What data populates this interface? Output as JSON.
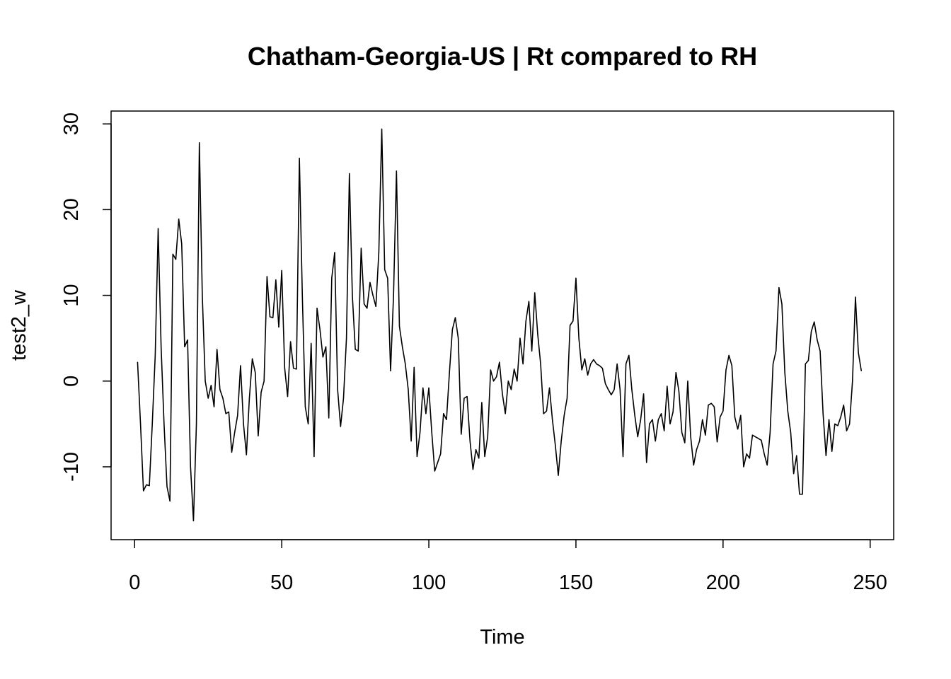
{
  "chart_data": {
    "type": "line",
    "title": "Chatham-Georgia-US | Rt compared to RH",
    "xlabel": "Time",
    "ylabel": "test2_w",
    "xlim": [
      -8,
      258
    ],
    "ylim": [
      -18.5,
      31.5
    ],
    "xticks": [
      0,
      50,
      100,
      150,
      200,
      250
    ],
    "yticks": [
      -10,
      0,
      10,
      20,
      30
    ],
    "grid": false,
    "legend": "none",
    "line_color": "#000000",
    "series": [
      {
        "x_start": 1,
        "values": [
          2.2,
          -5.0,
          -12.8,
          -12.1,
          -12.2,
          -5.0,
          3.0,
          17.8,
          4.0,
          -5.0,
          -12.3,
          -14.0,
          14.8,
          14.2,
          18.9,
          16.0,
          4.0,
          4.8,
          -10.0,
          -16.3,
          -5.0,
          27.8,
          10.0,
          0.0,
          -2.0,
          -0.5,
          -3.0,
          3.7,
          -1.0,
          -2.0,
          -3.8,
          -3.6,
          -8.3,
          -6.0,
          -4.0,
          1.8,
          -5.0,
          -8.6,
          -2.0,
          2.6,
          1.0,
          -6.4,
          -1.3,
          0.0,
          12.2,
          7.5,
          7.4,
          11.8,
          6.3,
          12.9,
          1.5,
          -1.8,
          4.6,
          1.5,
          1.4,
          26.0,
          10.0,
          -3.0,
          -5.0,
          4.4,
          -8.8,
          8.5,
          6.0,
          2.8,
          4.0,
          -4.3,
          12.0,
          15.0,
          -1.0,
          -5.3,
          -2.0,
          5.0,
          24.2,
          10.0,
          3.7,
          3.5,
          15.5,
          9.0,
          8.5,
          11.5,
          10.0,
          8.7,
          15.0,
          29.4,
          13.0,
          12.0,
          1.2,
          10.0,
          24.5,
          6.4,
          4.0,
          2.0,
          -1.0,
          -7.0,
          1.6,
          -8.8,
          -6.0,
          -0.8,
          -3.8,
          -0.8,
          -6.0,
          -10.5,
          -9.5,
          -8.5,
          -3.8,
          -4.5,
          1.0,
          6.0,
          7.4,
          5.0,
          -6.2,
          -2.0,
          -1.8,
          -7.0,
          -10.3,
          -8.0,
          -9.0,
          -2.5,
          -8.8,
          -6.5,
          1.3,
          0.0,
          0.5,
          2.2,
          -1.5,
          -3.8,
          0.0,
          -1.0,
          1.4,
          0.0,
          5.0,
          2.0,
          7.0,
          9.3,
          3.5,
          10.3,
          5.5,
          2.0,
          -3.8,
          -3.5,
          -0.8,
          -4.5,
          -7.5,
          -11.0,
          -7.0,
          -4.0,
          -2.0,
          6.5,
          7.0,
          12.0,
          5.0,
          1.3,
          2.6,
          0.7,
          2.0,
          2.5,
          2.0,
          1.8,
          1.5,
          -0.3,
          -1.0,
          -1.6,
          -1.0,
          2.0,
          -1.0,
          -8.8,
          2.0,
          3.0,
          -1.0,
          -4.0,
          -6.5,
          -4.5,
          -1.5,
          -9.5,
          -5.0,
          -4.5,
          -7.0,
          -4.5,
          -3.8,
          -5.8,
          -0.6,
          -5.0,
          -3.6,
          1.0,
          -1.2,
          -6.0,
          -7.2,
          0.0,
          -6.5,
          -9.8,
          -8.0,
          -7.0,
          -4.5,
          -6.3,
          -2.8,
          -2.6,
          -3.0,
          -7.1,
          -4.2,
          -3.5,
          1.3,
          3.0,
          1.8,
          -4.2,
          -5.6,
          -4.0,
          -10.0,
          -8.5,
          -9.0,
          -6.3,
          -6.5,
          -6.7,
          -6.9,
          -8.5,
          -9.8,
          -6.0,
          2.0,
          3.5,
          10.9,
          9.0,
          1.0,
          -3.5,
          -6.0,
          -10.8,
          -8.7,
          -13.2,
          -13.2,
          2.0,
          2.4,
          5.8,
          6.9,
          4.8,
          3.5,
          -3.8,
          -8.7,
          -4.5,
          -8.2,
          -5.0,
          -5.2,
          -4.2,
          -2.8,
          -5.8,
          -5.0,
          0.0,
          9.8,
          3.3,
          1.2
        ]
      }
    ]
  }
}
